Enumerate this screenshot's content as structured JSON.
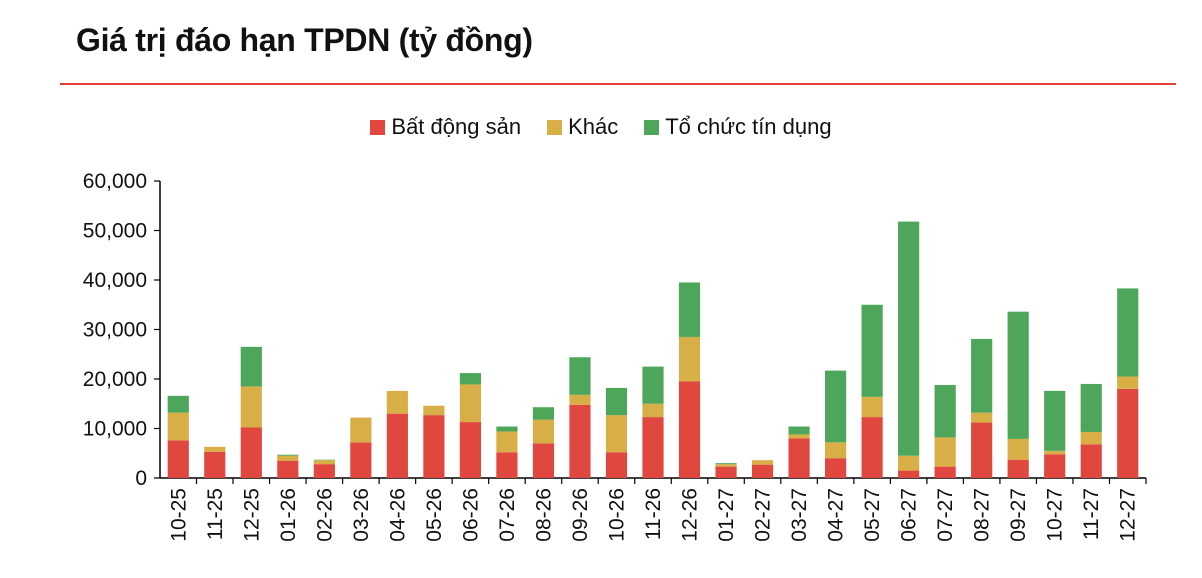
{
  "title": "Giá trị đáo hạn TPDN (tỷ đồng)",
  "colors": {
    "accent_rule": "#e0413a",
    "series": [
      "#e0473e",
      "#d8ae47",
      "#4ea65a"
    ]
  },
  "chart_data": {
    "type": "bar",
    "stacked": true,
    "title": "Giá trị đáo hạn TPDN (tỷ đồng)",
    "xlabel": "",
    "ylabel": "",
    "ylim": [
      0,
      60000
    ],
    "yticks": [
      0,
      10000,
      20000,
      30000,
      40000,
      50000,
      60000
    ],
    "ytick_labels": [
      "0",
      "10,000",
      "20,000",
      "30,000",
      "40,000",
      "50,000",
      "60,000"
    ],
    "legend_position": "top-center",
    "grid": false,
    "categories": [
      "10-25",
      "11-25",
      "12-25",
      "01-26",
      "02-26",
      "03-26",
      "04-26",
      "05-26",
      "06-26",
      "07-26",
      "08-26",
      "09-26",
      "10-26",
      "11-26",
      "12-26",
      "01-27",
      "02-27",
      "03-27",
      "04-27",
      "05-27",
      "06-27",
      "07-27",
      "08-27",
      "09-27",
      "10-27",
      "11-27",
      "12-27"
    ],
    "series": [
      {
        "name": "Bất động sản",
        "color": "#e0473e",
        "values": [
          7600,
          5300,
          10200,
          3500,
          2800,
          7200,
          13000,
          12700,
          11300,
          5200,
          7000,
          14800,
          5200,
          12300,
          19500,
          2300,
          2700,
          8000,
          4000,
          12300,
          1500,
          2300,
          11200,
          3700,
          4800,
          6800,
          18000
        ]
      },
      {
        "name": "Khác",
        "color": "#d8ae47",
        "values": [
          5600,
          1000,
          8300,
          1000,
          800,
          5000,
          4600,
          1900,
          7600,
          4200,
          4800,
          2000,
          7500,
          2700,
          9000,
          500,
          900,
          800,
          3200,
          4100,
          3000,
          5900,
          2000,
          4200,
          700,
          2500,
          2500
        ]
      },
      {
        "name": "Tổ chức tín dụng",
        "color": "#4ea65a",
        "values": [
          3400,
          0,
          8000,
          200,
          100,
          0,
          0,
          0,
          2300,
          1000,
          2500,
          7600,
          5500,
          7500,
          11000,
          200,
          0,
          1600,
          14500,
          18600,
          47300,
          10600,
          14900,
          25700,
          12100,
          9700,
          17800
        ]
      }
    ]
  }
}
